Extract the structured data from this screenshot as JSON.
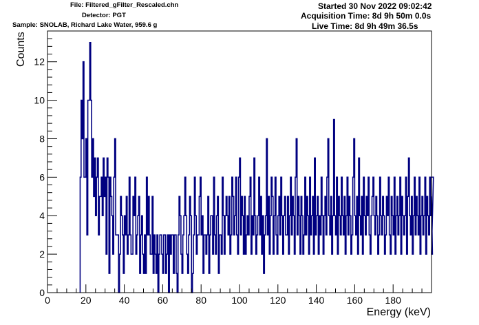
{
  "header": {
    "file": "File: Filtered_gFilter_Rescaled.chn",
    "detector": "Detector: PGT",
    "sample": "Sample: SNOLAB, Richard Lake Water, 959.6 g",
    "started": "Started 30 Nov 2022 09:02:42",
    "acquisition_time": "Acquisition Time: 8d 9h 50m 0.0s",
    "live_time": "Live Time: 8d 9h 49m 36.5s"
  },
  "chart_data": {
    "type": "histogram",
    "xlabel": "Energy (keV)",
    "ylabel": "Counts",
    "xlim": [
      0,
      200
    ],
    "ylim": [
      0,
      13.6
    ],
    "x_ticks": [
      0,
      20,
      40,
      60,
      80,
      100,
      120,
      140,
      160,
      180
    ],
    "y_ticks": [
      0,
      2,
      4,
      6,
      8,
      10,
      12
    ],
    "grid": false,
    "line_color": "#000080",
    "bin_width": 0.5,
    "bin_start": 17.0,
    "counts": [
      6,
      10,
      8,
      12,
      6,
      6,
      8,
      3,
      10,
      10,
      13,
      10,
      6,
      8,
      5,
      7,
      4,
      6,
      7,
      3,
      5,
      5,
      6,
      4,
      7,
      5,
      6,
      2,
      7,
      6,
      1,
      6,
      5,
      4,
      2,
      6,
      8,
      3,
      3,
      3,
      0,
      2,
      5,
      4,
      3,
      1,
      4,
      3,
      5,
      2,
      3,
      6,
      3,
      2,
      2,
      5,
      4,
      6,
      2,
      3,
      4,
      5,
      1,
      3,
      4,
      2,
      1,
      3,
      1,
      6,
      3,
      5,
      3,
      2,
      2,
      5,
      1,
      3,
      2,
      1,
      3,
      0,
      2,
      3,
      3,
      2,
      1,
      3,
      3,
      1,
      2,
      3,
      0,
      3,
      2,
      3,
      3,
      1,
      3,
      3,
      1,
      0,
      3,
      5,
      4,
      2,
      1,
      3,
      4,
      6,
      4,
      2,
      1,
      3,
      5,
      4,
      0,
      1,
      3,
      6,
      4,
      2,
      3,
      3,
      5,
      6,
      3,
      4,
      1,
      3,
      3,
      2,
      3,
      5,
      1,
      3,
      4,
      4,
      2,
      6,
      3,
      2,
      4,
      5,
      1,
      3,
      3,
      2,
      6,
      4,
      2,
      4,
      5,
      4,
      3,
      5,
      2,
      3,
      6,
      5,
      3,
      4,
      6,
      3,
      2,
      6,
      7,
      3,
      5,
      4,
      2,
      5,
      2,
      3,
      4,
      3,
      5,
      6,
      2,
      4,
      3,
      7,
      4,
      2,
      3,
      4,
      6,
      3,
      5,
      2,
      4,
      1,
      3,
      4,
      8,
      3,
      5,
      2,
      4,
      6,
      5,
      2,
      4,
      6,
      3,
      2,
      4,
      5,
      3,
      6,
      4,
      2,
      4,
      5,
      3,
      3,
      5,
      2,
      4,
      6,
      3,
      5,
      4,
      2,
      6,
      8,
      3,
      5,
      4,
      2,
      5,
      4,
      2,
      3,
      6,
      3,
      5,
      4,
      2,
      6,
      3,
      4,
      5,
      2,
      7,
      3,
      4,
      5,
      2,
      4,
      3,
      6,
      4,
      2,
      4,
      5,
      3,
      6,
      8,
      4,
      3,
      5,
      2,
      4,
      9,
      4,
      3,
      6,
      2,
      5,
      4,
      3,
      6,
      4,
      3,
      5,
      2,
      4,
      6,
      3,
      5,
      4,
      2,
      3,
      6,
      8,
      4,
      3,
      5,
      2,
      7,
      4,
      3,
      5,
      2,
      6,
      4,
      3,
      5,
      4,
      6,
      3,
      2,
      4,
      5,
      6,
      4,
      3,
      5,
      4,
      2,
      3,
      6,
      4,
      3,
      5,
      4,
      2,
      3,
      5,
      4,
      6,
      3,
      2,
      5,
      4,
      3,
      6,
      2,
      4,
      5,
      3,
      4,
      6,
      2,
      5,
      4,
      3,
      4,
      6,
      2,
      5,
      7,
      4,
      3,
      5,
      2,
      4,
      6,
      3,
      5,
      4,
      3,
      6,
      2,
      4,
      5,
      3,
      4,
      6,
      2,
      5,
      4,
      3,
      6,
      4,
      5,
      2,
      6
    ]
  }
}
